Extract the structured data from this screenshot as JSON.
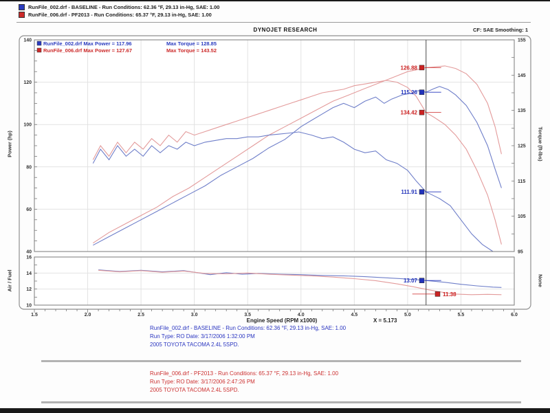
{
  "header": {
    "legend_lines": [
      {
        "swatch_color": "#2a3bbf",
        "text": "RunFile_002.drf - BASELINE  -  Run Conditions: 62.36 °F, 29.13 in-Hg, SAE: 1.00"
      },
      {
        "swatch_color": "#cc2a2a",
        "text": "RunFile_006.drf - PF2013  -  Run Conditions: 65.37 °F, 29.13 in-Hg, SAE: 1.00"
      }
    ],
    "title": "DYNOJET RESEARCH",
    "right_text": "CF: SAE   Smoothing: 1"
  },
  "chart_data": {
    "type": "line",
    "x_axis": {
      "label": "Engine Speed (RPM x1000)",
      "min": 1.5,
      "max": 6.0,
      "ticks": [
        1.5,
        2.0,
        2.5,
        3.0,
        3.5,
        4.0,
        4.5,
        5.0,
        5.5,
        6.0
      ]
    },
    "cursor": {
      "x": 5.173,
      "label": "X = 5.173",
      "color": "#4a4a4a"
    },
    "axes": {
      "power": {
        "label": "Power (hp)",
        "min": 40,
        "max": 140,
        "ticks": [
          140,
          120,
          100,
          80,
          60,
          40
        ]
      },
      "torque": {
        "label": "Torque (ft-lbs)",
        "min": 95,
        "max": 155,
        "ticks": [
          155,
          145,
          135,
          125,
          115,
          105,
          95
        ]
      },
      "af": {
        "label": "Air / Fuel",
        "min": 10,
        "max": 16,
        "ticks": [
          16,
          14,
          12,
          10
        ],
        "right_label": "None"
      }
    },
    "legend": [
      {
        "text1": "RunFile_002.drf Max Power = 117.96",
        "text2": "Max Torque = 128.85",
        "color": "#2a3bbf"
      },
      {
        "text1": "RunFile_006.drf Max Power = 127.67",
        "text2": "Max Torque = 143.52",
        "color": "#cc2a2a"
      }
    ],
    "series": [
      {
        "name": "baseline-power",
        "axis": "power",
        "color": "#6e7ec9",
        "points": [
          [
            2.05,
            43
          ],
          [
            2.2,
            47
          ],
          [
            2.35,
            51
          ],
          [
            2.5,
            55
          ],
          [
            2.65,
            59
          ],
          [
            2.8,
            63
          ],
          [
            2.95,
            67
          ],
          [
            3.1,
            71
          ],
          [
            3.25,
            76
          ],
          [
            3.4,
            80
          ],
          [
            3.55,
            84
          ],
          [
            3.7,
            89
          ],
          [
            3.85,
            93
          ],
          [
            4.0,
            99
          ],
          [
            4.1,
            102
          ],
          [
            4.2,
            105
          ],
          [
            4.3,
            108
          ],
          [
            4.4,
            110
          ],
          [
            4.5,
            108
          ],
          [
            4.6,
            111
          ],
          [
            4.7,
            113
          ],
          [
            4.78,
            110
          ],
          [
            4.85,
            112
          ],
          [
            4.95,
            114
          ],
          [
            5.05,
            115
          ],
          [
            5.1,
            116
          ],
          [
            5.173,
            115.3
          ],
          [
            5.25,
            117
          ],
          [
            5.3,
            118
          ],
          [
            5.38,
            116.5
          ],
          [
            5.45,
            114
          ],
          [
            5.55,
            109
          ],
          [
            5.65,
            101
          ],
          [
            5.75,
            90
          ],
          [
            5.82,
            79
          ],
          [
            5.88,
            70
          ]
        ]
      },
      {
        "name": "pf2013-power",
        "axis": "power",
        "color": "#e39a9a",
        "points": [
          [
            2.05,
            44
          ],
          [
            2.2,
            49
          ],
          [
            2.35,
            53
          ],
          [
            2.5,
            57
          ],
          [
            2.65,
            61
          ],
          [
            2.8,
            66
          ],
          [
            2.95,
            70
          ],
          [
            3.1,
            75
          ],
          [
            3.25,
            80
          ],
          [
            3.4,
            85
          ],
          [
            3.55,
            90
          ],
          [
            3.7,
            95
          ],
          [
            3.85,
            99
          ],
          [
            4.0,
            103
          ],
          [
            4.15,
            107
          ],
          [
            4.3,
            111
          ],
          [
            4.45,
            114
          ],
          [
            4.6,
            117
          ],
          [
            4.75,
            120
          ],
          [
            4.9,
            123
          ],
          [
            5.0,
            125
          ],
          [
            5.1,
            126
          ],
          [
            5.173,
            126.9
          ],
          [
            5.25,
            127.2
          ],
          [
            5.35,
            127.7
          ],
          [
            5.45,
            126.5
          ],
          [
            5.55,
            124
          ],
          [
            5.65,
            119
          ],
          [
            5.75,
            110
          ],
          [
            5.82,
            99
          ],
          [
            5.88,
            86
          ]
        ]
      },
      {
        "name": "baseline-torque",
        "axis": "torque",
        "color": "#6e7ec9",
        "points": [
          [
            2.05,
            120
          ],
          [
            2.12,
            124
          ],
          [
            2.2,
            121
          ],
          [
            2.28,
            125
          ],
          [
            2.36,
            122
          ],
          [
            2.44,
            124
          ],
          [
            2.52,
            122
          ],
          [
            2.6,
            125
          ],
          [
            2.68,
            123
          ],
          [
            2.76,
            125
          ],
          [
            2.84,
            124
          ],
          [
            2.92,
            126
          ],
          [
            3.0,
            125
          ],
          [
            3.1,
            126
          ],
          [
            3.2,
            126.5
          ],
          [
            3.3,
            127
          ],
          [
            3.4,
            127
          ],
          [
            3.5,
            127.5
          ],
          [
            3.6,
            127.5
          ],
          [
            3.7,
            128
          ],
          [
            3.8,
            128.3
          ],
          [
            3.9,
            128.6
          ],
          [
            3.98,
            128.9
          ],
          [
            4.1,
            128
          ],
          [
            4.2,
            127
          ],
          [
            4.3,
            127.5
          ],
          [
            4.4,
            126
          ],
          [
            4.5,
            124
          ],
          [
            4.6,
            123
          ],
          [
            4.7,
            123.5
          ],
          [
            4.8,
            121
          ],
          [
            4.9,
            120
          ],
          [
            5.0,
            118
          ],
          [
            5.08,
            115
          ],
          [
            5.173,
            111.9
          ],
          [
            5.3,
            110
          ],
          [
            5.4,
            108
          ],
          [
            5.5,
            104
          ],
          [
            5.6,
            100
          ],
          [
            5.7,
            97
          ],
          [
            5.8,
            95
          ],
          [
            5.88,
            93
          ]
        ]
      },
      {
        "name": "pf2013-torque",
        "axis": "torque",
        "color": "#e39a9a",
        "points": [
          [
            2.05,
            121
          ],
          [
            2.12,
            125
          ],
          [
            2.2,
            122
          ],
          [
            2.28,
            126
          ],
          [
            2.36,
            123
          ],
          [
            2.44,
            126
          ],
          [
            2.52,
            124
          ],
          [
            2.6,
            127
          ],
          [
            2.68,
            125
          ],
          [
            2.76,
            128
          ],
          [
            2.84,
            126
          ],
          [
            2.92,
            129
          ],
          [
            3.0,
            128
          ],
          [
            3.1,
            129
          ],
          [
            3.2,
            130
          ],
          [
            3.3,
            131
          ],
          [
            3.4,
            132
          ],
          [
            3.5,
            133
          ],
          [
            3.6,
            134
          ],
          [
            3.7,
            135
          ],
          [
            3.8,
            136
          ],
          [
            3.9,
            137
          ],
          [
            4.0,
            138
          ],
          [
            4.1,
            139
          ],
          [
            4.2,
            140
          ],
          [
            4.3,
            140.5
          ],
          [
            4.4,
            141
          ],
          [
            4.5,
            142
          ],
          [
            4.6,
            142.5
          ],
          [
            4.7,
            143
          ],
          [
            4.8,
            143.5
          ],
          [
            4.9,
            143
          ],
          [
            5.0,
            141.5
          ],
          [
            5.08,
            139
          ],
          [
            5.173,
            134.4
          ],
          [
            5.25,
            133
          ],
          [
            5.35,
            131
          ],
          [
            5.45,
            128
          ],
          [
            5.55,
            124
          ],
          [
            5.65,
            118
          ],
          [
            5.75,
            111
          ],
          [
            5.82,
            104
          ],
          [
            5.88,
            97
          ]
        ]
      },
      {
        "name": "baseline-af",
        "axis": "af",
        "color": "#6e7ec9",
        "points": [
          [
            2.1,
            14.4
          ],
          [
            2.3,
            14.2
          ],
          [
            2.5,
            14.35
          ],
          [
            2.7,
            14.15
          ],
          [
            2.9,
            14.3
          ],
          [
            3.05,
            14.0
          ],
          [
            3.15,
            13.8
          ],
          [
            3.3,
            14.05
          ],
          [
            3.45,
            13.85
          ],
          [
            3.6,
            13.95
          ],
          [
            3.8,
            13.85
          ],
          [
            4.0,
            13.8
          ],
          [
            4.2,
            13.7
          ],
          [
            4.4,
            13.65
          ],
          [
            4.6,
            13.55
          ],
          [
            4.8,
            13.4
          ],
          [
            5.0,
            13.25
          ],
          [
            5.173,
            13.07
          ],
          [
            5.35,
            12.85
          ],
          [
            5.5,
            12.6
          ],
          [
            5.65,
            12.4
          ],
          [
            5.8,
            12.25
          ],
          [
            5.88,
            12.2
          ]
        ]
      },
      {
        "name": "pf2013-af",
        "axis": "af",
        "color": "#e39a9a",
        "points": [
          [
            2.1,
            14.35
          ],
          [
            2.3,
            14.15
          ],
          [
            2.5,
            14.3
          ],
          [
            2.7,
            14.1
          ],
          [
            2.9,
            14.25
          ],
          [
            3.1,
            13.95
          ],
          [
            3.3,
            13.9
          ],
          [
            3.5,
            14.0
          ],
          [
            3.7,
            13.85
          ],
          [
            3.9,
            13.75
          ],
          [
            4.1,
            13.65
          ],
          [
            4.3,
            13.5
          ],
          [
            4.5,
            13.3
          ],
          [
            4.7,
            13.05
          ],
          [
            4.9,
            12.65
          ],
          [
            5.05,
            12.3
          ],
          [
            5.2,
            11.9
          ],
          [
            5.35,
            11.55
          ],
          [
            5.45,
            11.38
          ],
          [
            5.6,
            11.3
          ],
          [
            5.75,
            11.35
          ],
          [
            5.88,
            11.3
          ]
        ]
      }
    ],
    "callouts": [
      {
        "label": "126.88",
        "value": 126.88,
        "axis": "power",
        "color": "#cc2222",
        "side": "left"
      },
      {
        "label": "115.26",
        "value": 115.26,
        "axis": "power",
        "color": "#2233bb",
        "side": "left"
      },
      {
        "label": "134.42",
        "value": 134.42,
        "axis": "torque",
        "color": "#cc2222",
        "side": "left"
      },
      {
        "label": "111.91",
        "value": 111.91,
        "axis": "torque",
        "color": "#2233bb",
        "side": "left"
      },
      {
        "label": "13.07",
        "value": 13.07,
        "axis": "af",
        "color": "#2233bb",
        "side": "left"
      },
      {
        "label": "11.38",
        "value": 11.38,
        "axis": "af",
        "color": "#cc2222",
        "side": "right"
      }
    ]
  },
  "footer": {
    "blue_block": [
      "RunFile_002.drf - BASELINE  -  Run Conditions: 62.36 °F, 29.13 in-Hg, SAE: 1.00",
      "Run Type: RO  Date: 3/17/2006 1:32:00 PM",
      "2005 TOYOTA TACOMA 2.4L 5SPD."
    ],
    "red_block": [
      "RunFile_006.drf - PF2013  -  Run Conditions: 65.37 °F, 29.13 in-Hg, SAE: 1.00",
      "Run Type: RO  Date: 3/17/2006 2:47:26 PM",
      "2005 TOYOTA TACOMA 2.4L 5SPD."
    ]
  }
}
